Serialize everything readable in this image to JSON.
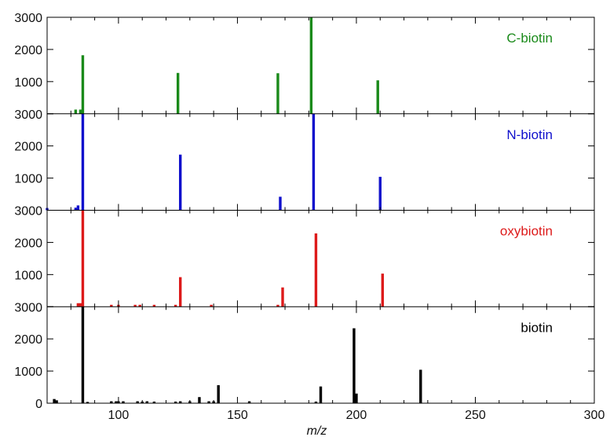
{
  "chart_data": {
    "type": "bar",
    "xlabel": "m/z",
    "xlim": [
      70,
      300
    ],
    "ylim": [
      0,
      3000
    ],
    "x_ticks": [
      100,
      150,
      200,
      250,
      300
    ],
    "y_ticks": [
      0,
      1000,
      2000,
      3000
    ],
    "grid": false,
    "series": [
      {
        "name": "C-biotin",
        "color": "#1a8a1a",
        "points": [
          [
            82,
            130
          ],
          [
            84,
            130
          ],
          [
            85,
            1820
          ],
          [
            125,
            1270
          ],
          [
            167,
            1260
          ],
          [
            181,
            3020
          ],
          [
            209,
            1040
          ]
        ]
      },
      {
        "name": "N-biotin",
        "color": "#1010cc",
        "points": [
          [
            70,
            70
          ],
          [
            82,
            80
          ],
          [
            83,
            150
          ],
          [
            85,
            3000
          ],
          [
            126,
            1730
          ],
          [
            168,
            420
          ],
          [
            182,
            3000
          ],
          [
            210,
            1040
          ]
        ]
      },
      {
        "name": "oxybiotin",
        "color": "#dd1a1a",
        "points": [
          [
            83,
            110
          ],
          [
            84,
            110
          ],
          [
            85,
            3000
          ],
          [
            97,
            60
          ],
          [
            100,
            60
          ],
          [
            107,
            60
          ],
          [
            109,
            60
          ],
          [
            115,
            60
          ],
          [
            124,
            60
          ],
          [
            126,
            920
          ],
          [
            139,
            60
          ],
          [
            167,
            60
          ],
          [
            169,
            600
          ],
          [
            183,
            2280
          ],
          [
            211,
            1030
          ]
        ]
      },
      {
        "name": "biotin",
        "color": "#000000",
        "points": [
          [
            73,
            130
          ],
          [
            74,
            90
          ],
          [
            85,
            3000
          ],
          [
            87,
            40
          ],
          [
            97,
            60
          ],
          [
            99,
            60
          ],
          [
            100,
            60
          ],
          [
            102,
            60
          ],
          [
            108,
            60
          ],
          [
            110,
            50
          ],
          [
            112,
            60
          ],
          [
            115,
            50
          ],
          [
            124,
            50
          ],
          [
            126,
            60
          ],
          [
            130,
            60
          ],
          [
            134,
            190
          ],
          [
            138,
            60
          ],
          [
            140,
            60
          ],
          [
            142,
            560
          ],
          [
            155,
            60
          ],
          [
            183,
            50
          ],
          [
            185,
            520
          ],
          [
            199,
            2330
          ],
          [
            200,
            300
          ],
          [
            227,
            1040
          ]
        ]
      }
    ]
  }
}
